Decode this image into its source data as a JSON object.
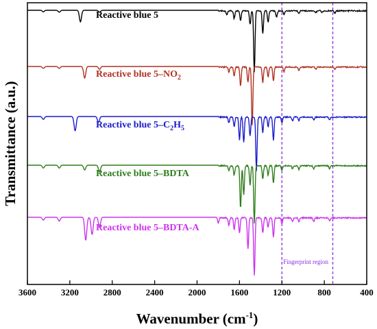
{
  "chart_data": {
    "type": "line",
    "xlabel": "Wavenumber (cm",
    "xlabel_sup": "-1",
    "xlabel_end": ")",
    "ylabel": "Transmittance (a.u.)",
    "xlim": [
      3600,
      400
    ],
    "x_reversed": true,
    "xticks": [
      "3600",
      "3200",
      "2800",
      "2400",
      "2000",
      "1600",
      "1200",
      "800",
      "400"
    ],
    "grid": false,
    "annotation": {
      "text": "Fingerprint region",
      "x_range": [
        1200,
        720
      ],
      "color": "#8a2be2"
    },
    "series": [
      {
        "name": "Reactive blue 5",
        "name_parts": [
          {
            "t": "Reactive blue 5",
            "s": null
          }
        ],
        "color": "#000000",
        "peaks": [
          [
            3450,
            0.08
          ],
          [
            3300,
            0.1
          ],
          [
            3100,
            0.6
          ],
          [
            2920,
            0.1
          ],
          [
            1720,
            0.2
          ],
          [
            1650,
            0.4
          ],
          [
            1590,
            0.5
          ],
          [
            1500,
            0.7
          ],
          [
            1460,
            3.2
          ],
          [
            1380,
            1.2
          ],
          [
            1330,
            0.6
          ],
          [
            1250,
            0.35
          ],
          [
            1180,
            0.2
          ],
          [
            1040,
            0.15
          ],
          [
            880,
            0.08
          ],
          [
            820,
            0.08
          ],
          [
            700,
            0.12
          ]
        ]
      },
      {
        "name": "Reactive blue 5–NO2",
        "name_parts": [
          {
            "t": "Reactive blue 5–NO",
            "s": null
          },
          {
            "t": "2",
            "s": "sub"
          }
        ],
        "color": "#b03020",
        "peaks": [
          [
            3450,
            0.1
          ],
          [
            3300,
            0.1
          ],
          [
            3060,
            0.6
          ],
          [
            2920,
            0.15
          ],
          [
            1700,
            0.25
          ],
          [
            1650,
            0.45
          ],
          [
            1590,
            1.0
          ],
          [
            1520,
            0.8
          ],
          [
            1480,
            3.0
          ],
          [
            1380,
            0.8
          ],
          [
            1330,
            0.5
          ],
          [
            1280,
            0.7
          ],
          [
            1180,
            0.25
          ],
          [
            1040,
            0.2
          ],
          [
            880,
            0.1
          ],
          [
            700,
            0.15
          ]
        ]
      },
      {
        "name": "Reactive blue 5–C2H5",
        "name_parts": [
          {
            "t": "Reactive blue 5–C",
            "s": null
          },
          {
            "t": "2",
            "s": "sub"
          },
          {
            "t": "H",
            "s": null
          },
          {
            "t": "5",
            "s": "sub"
          }
        ],
        "color": "#1a1acc",
        "peaks": [
          [
            3450,
            0.15
          ],
          [
            3150,
            0.75
          ],
          [
            2930,
            0.3
          ],
          [
            1700,
            0.3
          ],
          [
            1650,
            0.5
          ],
          [
            1600,
            1.2
          ],
          [
            1560,
            1.3
          ],
          [
            1500,
            1.0
          ],
          [
            1440,
            2.8
          ],
          [
            1380,
            0.8
          ],
          [
            1330,
            0.5
          ],
          [
            1280,
            1.2
          ],
          [
            1200,
            0.3
          ],
          [
            1100,
            0.2
          ],
          [
            1040,
            0.2
          ],
          [
            900,
            0.15
          ],
          [
            750,
            0.15
          ]
        ]
      },
      {
        "name": "Reactive blue 5–BDTA",
        "name_parts": [
          {
            "t": "Reactive blue 5–BDTA",
            "s": null
          }
        ],
        "color": "#2e7d1a",
        "peaks": [
          [
            3450,
            0.15
          ],
          [
            3300,
            0.15
          ],
          [
            3060,
            0.25
          ],
          [
            2920,
            0.35
          ],
          [
            1700,
            0.25
          ],
          [
            1650,
            0.5
          ],
          [
            1590,
            2.2
          ],
          [
            1560,
            1.5
          ],
          [
            1500,
            1.0
          ],
          [
            1460,
            3.0
          ],
          [
            1380,
            0.7
          ],
          [
            1330,
            0.5
          ],
          [
            1280,
            0.9
          ],
          [
            1200,
            0.25
          ],
          [
            1100,
            0.15
          ],
          [
            1040,
            0.2
          ],
          [
            900,
            0.15
          ],
          [
            750,
            0.15
          ]
        ]
      },
      {
        "name": "Reactive blue 5–BDTA-A",
        "name_parts": [
          {
            "t": "Reactive blue 5–BDTA-A",
            "s": null
          }
        ],
        "color": "#cc33ee",
        "peaks": [
          [
            3450,
            0.15
          ],
          [
            3300,
            0.2
          ],
          [
            3050,
            1.2
          ],
          [
            2990,
            0.9
          ],
          [
            2920,
            0.5
          ],
          [
            1800,
            0.3
          ],
          [
            1700,
            0.4
          ],
          [
            1650,
            0.6
          ],
          [
            1600,
            0.8
          ],
          [
            1520,
            1.6
          ],
          [
            1460,
            3.0
          ],
          [
            1380,
            0.8
          ],
          [
            1330,
            0.5
          ],
          [
            1280,
            1.0
          ],
          [
            1200,
            0.3
          ],
          [
            1100,
            0.2
          ],
          [
            1040,
            0.2
          ],
          [
            900,
            0.2
          ],
          [
            750,
            0.15
          ]
        ]
      }
    ]
  }
}
